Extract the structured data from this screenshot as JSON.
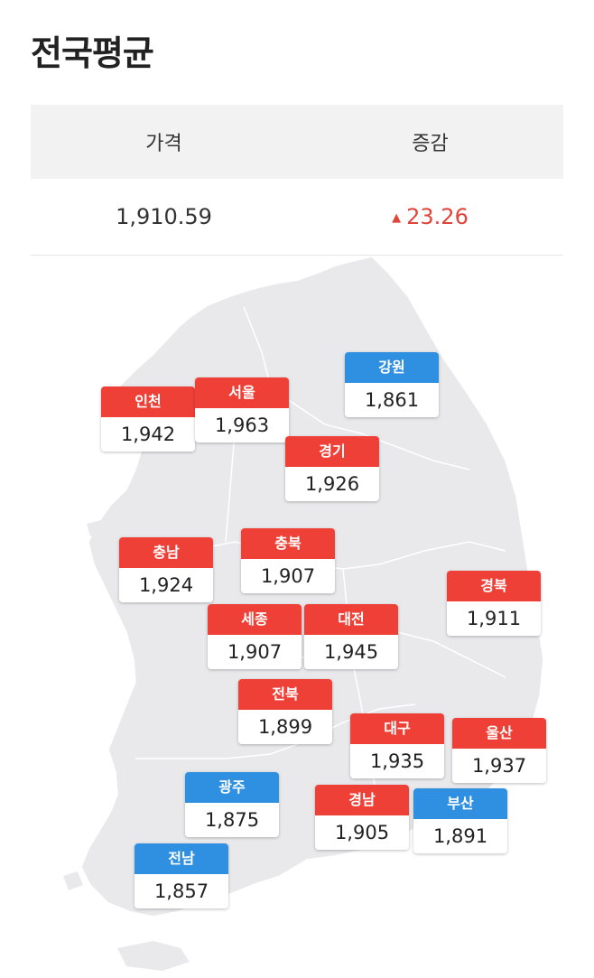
{
  "title": "전국평균",
  "table": {
    "headers": [
      "가격",
      "증감"
    ],
    "price": "1,910.59",
    "change_arrow": "▲",
    "change": "23.26"
  },
  "colors": {
    "up": "#ee4036",
    "down": "#2f8fe0",
    "map": "#e9e9ec"
  },
  "regions": [
    {
      "name": "강원",
      "value": "1,861",
      "trend": "down"
    },
    {
      "name": "인천",
      "value": "1,942",
      "trend": "up"
    },
    {
      "name": "서울",
      "value": "1,963",
      "trend": "up"
    },
    {
      "name": "경기",
      "value": "1,926",
      "trend": "up"
    },
    {
      "name": "충남",
      "value": "1,924",
      "trend": "up"
    },
    {
      "name": "충북",
      "value": "1,907",
      "trend": "up"
    },
    {
      "name": "경북",
      "value": "1,911",
      "trend": "up"
    },
    {
      "name": "세종",
      "value": "1,907",
      "trend": "up"
    },
    {
      "name": "대전",
      "value": "1,945",
      "trend": "up"
    },
    {
      "name": "전북",
      "value": "1,899",
      "trend": "up"
    },
    {
      "name": "대구",
      "value": "1,935",
      "trend": "up"
    },
    {
      "name": "울산",
      "value": "1,937",
      "trend": "up"
    },
    {
      "name": "광주",
      "value": "1,875",
      "trend": "down"
    },
    {
      "name": "경남",
      "value": "1,905",
      "trend": "up"
    },
    {
      "name": "부산",
      "value": "1,891",
      "trend": "down"
    },
    {
      "name": "전남",
      "value": "1,857",
      "trend": "down"
    }
  ]
}
